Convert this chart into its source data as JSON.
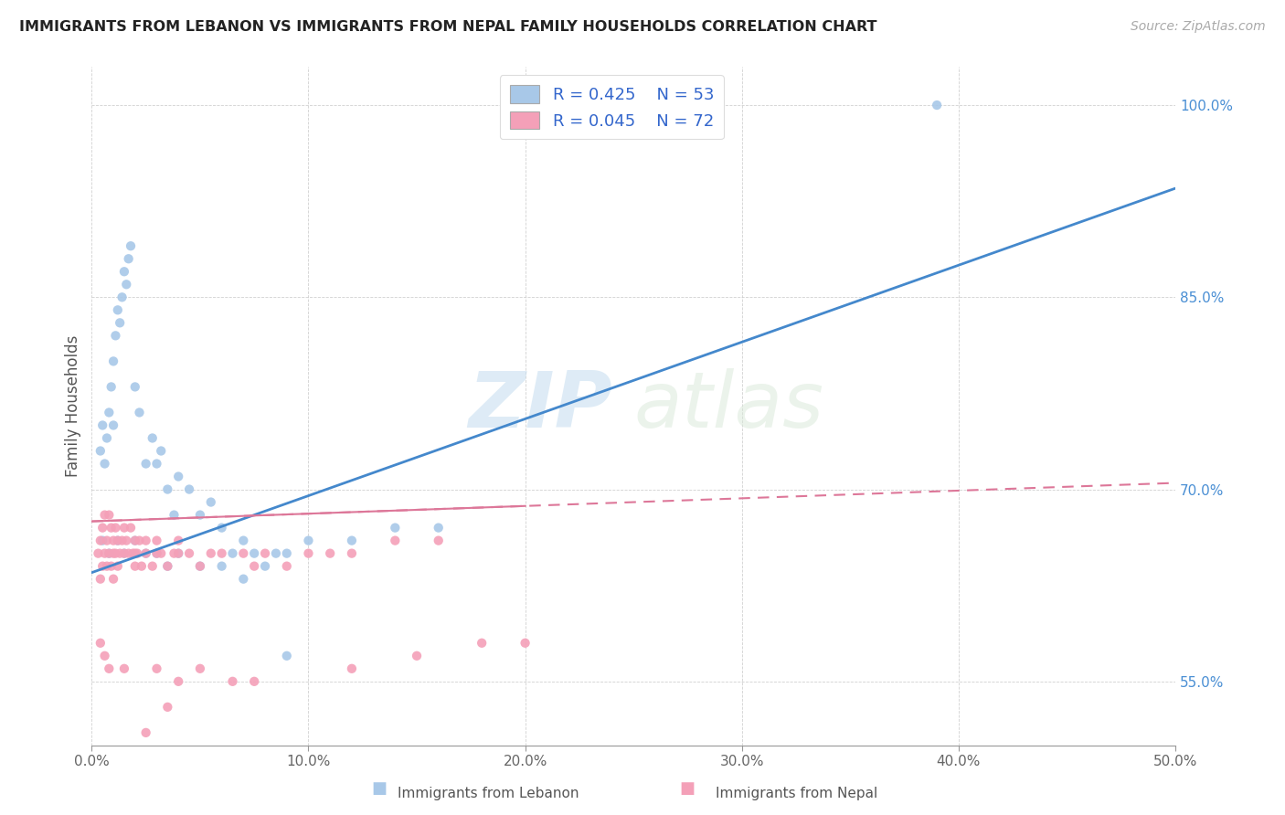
{
  "title": "IMMIGRANTS FROM LEBANON VS IMMIGRANTS FROM NEPAL FAMILY HOUSEHOLDS CORRELATION CHART",
  "source": "Source: ZipAtlas.com",
  "ylabel": "Family Households",
  "xlim": [
    0.0,
    50.0
  ],
  "ylim": [
    50.0,
    103.0
  ],
  "ytick_labels": [
    "55.0%",
    "70.0%",
    "85.0%",
    "100.0%"
  ],
  "ytick_values": [
    55.0,
    70.0,
    85.0,
    100.0
  ],
  "xtick_values": [
    0.0,
    10.0,
    20.0,
    30.0,
    40.0,
    50.0
  ],
  "xtick_labels": [
    "0.0%",
    "10.0%",
    "20.0%",
    "30.0%",
    "40.0%",
    "50.0%"
  ],
  "legend_R1": "R = 0.425",
  "legend_N1": "N = 53",
  "legend_R2": "R = 0.045",
  "legend_N2": "N = 72",
  "color_lebanon": "#a8c8e8",
  "color_nepal": "#f4a0b8",
  "color_trend_lebanon": "#4488cc",
  "color_trend_nepal": "#dd7799",
  "watermark_zip": "ZIP",
  "watermark_atlas": "atlas",
  "lebanon_trend_x0": 0.0,
  "lebanon_trend_y0": 63.5,
  "lebanon_trend_x1": 50.0,
  "lebanon_trend_y1": 93.5,
  "nepal_trend_x0": 0.0,
  "nepal_trend_y0": 67.5,
  "nepal_trend_x1": 50.0,
  "nepal_trend_y1": 70.5,
  "nepal_solid_x0": 0.0,
  "nepal_solid_y0": 66.5,
  "nepal_solid_x1": 20.0,
  "nepal_solid_y1": 68.5,
  "lebanon_scatter_x": [
    0.4,
    0.5,
    0.6,
    0.7,
    0.8,
    0.9,
    1.0,
    1.0,
    1.1,
    1.2,
    1.3,
    1.4,
    1.5,
    1.6,
    1.7,
    1.8,
    2.0,
    2.2,
    2.5,
    2.8,
    3.0,
    3.2,
    3.5,
    3.8,
    4.0,
    4.5,
    5.0,
    5.5,
    6.0,
    6.5,
    7.0,
    7.5,
    8.0,
    8.5,
    9.0,
    10.0,
    12.0,
    14.0,
    16.0,
    0.5,
    0.8,
    1.2,
    1.5,
    2.0,
    2.5,
    3.0,
    3.5,
    4.0,
    5.0,
    6.0,
    7.0,
    9.0,
    39.0
  ],
  "lebanon_scatter_y": [
    73.0,
    75.0,
    72.0,
    74.0,
    76.0,
    78.0,
    80.0,
    75.0,
    82.0,
    84.0,
    83.0,
    85.0,
    87.0,
    86.0,
    88.0,
    89.0,
    78.0,
    76.0,
    72.0,
    74.0,
    72.0,
    73.0,
    70.0,
    68.0,
    71.0,
    70.0,
    68.0,
    69.0,
    67.0,
    65.0,
    66.0,
    65.0,
    64.0,
    65.0,
    65.0,
    66.0,
    66.0,
    67.0,
    67.0,
    66.0,
    65.0,
    66.0,
    65.0,
    66.0,
    65.0,
    65.0,
    64.0,
    65.0,
    64.0,
    64.0,
    63.0,
    57.0,
    100.0
  ],
  "nepal_scatter_x": [
    0.3,
    0.4,
    0.4,
    0.5,
    0.5,
    0.6,
    0.6,
    0.7,
    0.7,
    0.8,
    0.8,
    0.9,
    0.9,
    1.0,
    1.0,
    1.0,
    1.1,
    1.1,
    1.2,
    1.2,
    1.3,
    1.4,
    1.5,
    1.5,
    1.6,
    1.7,
    1.8,
    1.9,
    2.0,
    2.0,
    2.0,
    2.1,
    2.2,
    2.3,
    2.5,
    2.5,
    2.8,
    3.0,
    3.0,
    3.2,
    3.5,
    3.8,
    4.0,
    4.0,
    4.5,
    5.0,
    5.5,
    6.0,
    7.0,
    7.5,
    8.0,
    9.0,
    10.0,
    11.0,
    12.0,
    14.0,
    16.0,
    0.4,
    0.6,
    0.8,
    1.5,
    3.0,
    4.0,
    5.0,
    6.5,
    7.5,
    12.0,
    15.0,
    18.0,
    20.0,
    2.5,
    3.5
  ],
  "nepal_scatter_y": [
    65.0,
    66.0,
    63.0,
    67.0,
    64.0,
    68.0,
    65.0,
    66.0,
    64.0,
    68.0,
    65.0,
    67.0,
    64.0,
    66.0,
    65.0,
    63.0,
    67.0,
    65.0,
    66.0,
    64.0,
    65.0,
    66.0,
    67.0,
    65.0,
    66.0,
    65.0,
    67.0,
    65.0,
    66.0,
    65.0,
    64.0,
    65.0,
    66.0,
    64.0,
    66.0,
    65.0,
    64.0,
    66.0,
    65.0,
    65.0,
    64.0,
    65.0,
    66.0,
    65.0,
    65.0,
    64.0,
    65.0,
    65.0,
    65.0,
    64.0,
    65.0,
    64.0,
    65.0,
    65.0,
    65.0,
    66.0,
    66.0,
    58.0,
    57.0,
    56.0,
    56.0,
    56.0,
    55.0,
    56.0,
    55.0,
    55.0,
    56.0,
    57.0,
    58.0,
    58.0,
    51.0,
    53.0
  ]
}
